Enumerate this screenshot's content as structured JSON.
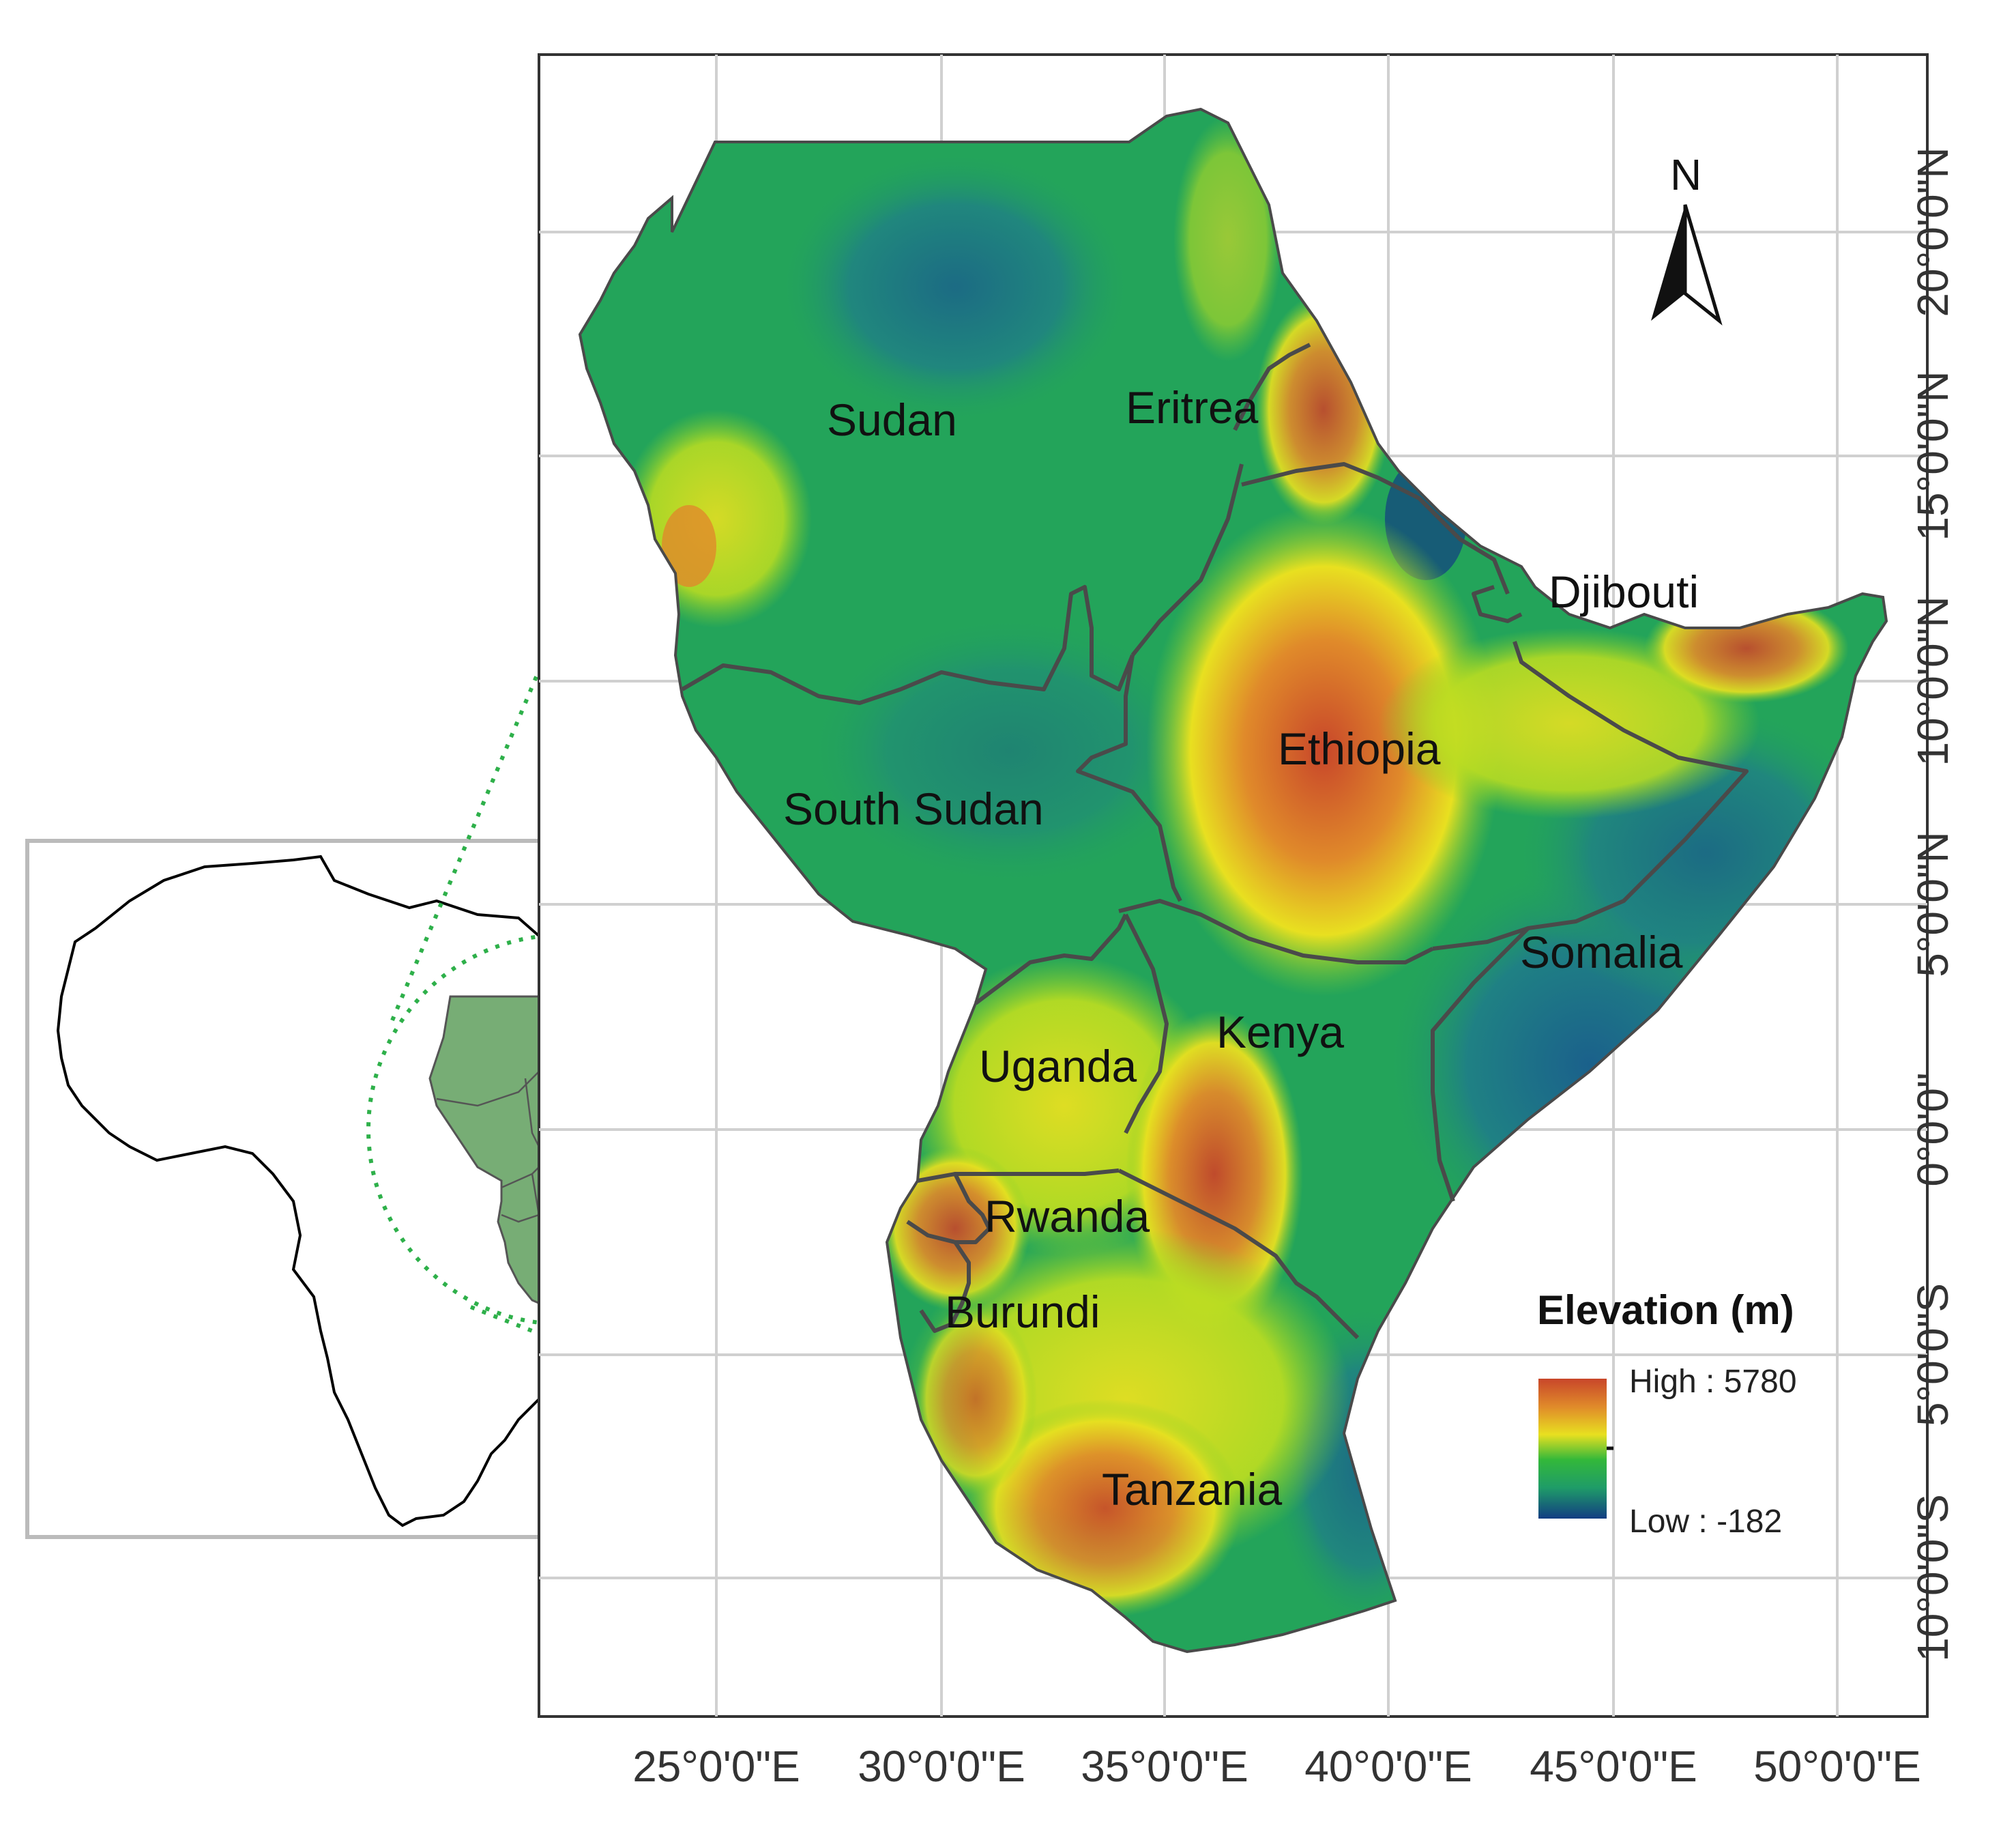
{
  "colors": {
    "lowland": "#1d6f8c",
    "plain": "#23a45a",
    "midland": "#7fcf2a",
    "upland": "#e8e020",
    "highland": "#e08a2a",
    "peak": "#c8462a",
    "boundary": "#4a4a4a",
    "grid": "#d0d0d0",
    "inset_fill": "#77ad75",
    "inset_highlight": "#2eb04a"
  },
  "map": {
    "x_ticks": [
      "25°0'0\"E",
      "30°0'0\"E",
      "35°0'0\"E",
      "40°0'0\"E",
      "45°0'0\"E",
      "50°0'0\"E"
    ],
    "y_ticks": [
      "20°0'0\"N",
      "15°0'0\"N",
      "10°0'0\"N",
      "5°0'0\"N",
      "0°0'0\"",
      "5°0'0\"S",
      "10°0'0\"S"
    ],
    "countries": [
      "Sudan",
      "Eritrea",
      "Djibouti",
      "Ethiopia",
      "South Sudan",
      "Somalia",
      "Kenya",
      "Uganda",
      "Rwanda",
      "Burundi",
      "Tanzania"
    ]
  },
  "north_arrow": {
    "label": "N",
    "icon": "north-arrow-icon"
  },
  "legend": {
    "title": "Elevation (m)",
    "high_label": "High : 5780",
    "low_label": "Low : -182"
  }
}
